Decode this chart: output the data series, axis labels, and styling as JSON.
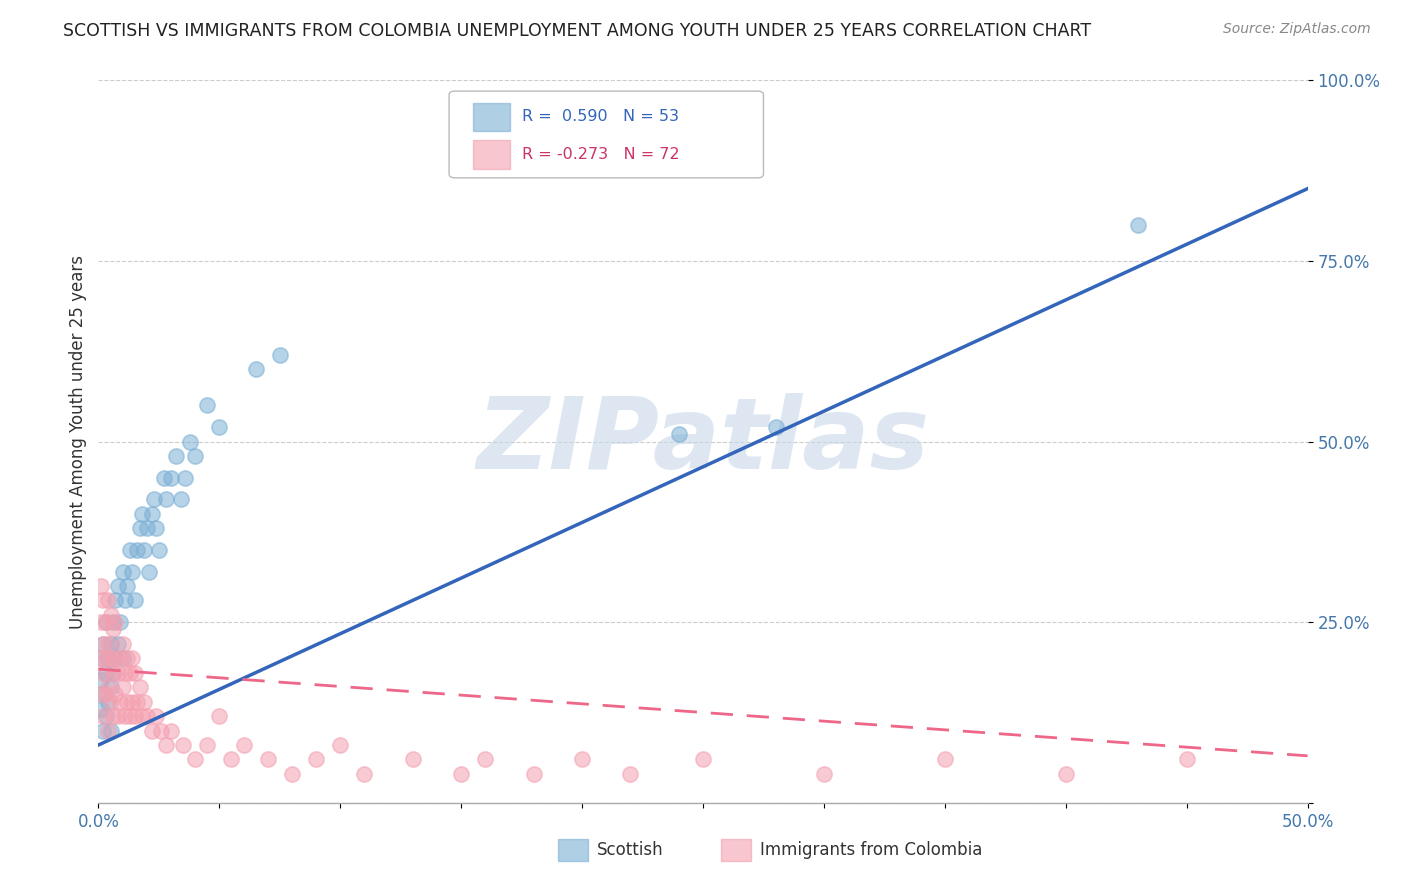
{
  "title": "SCOTTISH VS IMMIGRANTS FROM COLOMBIA UNEMPLOYMENT AMONG YOUTH UNDER 25 YEARS CORRELATION CHART",
  "source": "Source: ZipAtlas.com",
  "ylabel": "Unemployment Among Youth under 25 years",
  "xlim": [
    0.0,
    0.5
  ],
  "ylim": [
    0.0,
    1.0
  ],
  "ytick_positions": [
    0.0,
    0.25,
    0.5,
    0.75,
    1.0
  ],
  "yticklabels": [
    "",
    "25.0%",
    "50.0%",
    "75.0%",
    "100.0%"
  ],
  "scottish_R": 0.59,
  "scottish_N": 53,
  "colombia_R": -0.273,
  "colombia_N": 72,
  "scottish_color": "#7BAFD4",
  "colombia_color": "#F4A0B0",
  "scottish_line_color": "#3366BB",
  "colombia_line_color": "#EE6688",
  "watermark": "ZIPatlas",
  "legend_scottish": "Scottish",
  "legend_colombia": "Immigrants from Colombia",
  "scottish_x": [
    0.001,
    0.001,
    0.001,
    0.002,
    0.002,
    0.002,
    0.003,
    0.003,
    0.003,
    0.004,
    0.004,
    0.005,
    0.005,
    0.005,
    0.006,
    0.006,
    0.007,
    0.007,
    0.008,
    0.008,
    0.009,
    0.01,
    0.01,
    0.011,
    0.012,
    0.013,
    0.014,
    0.015,
    0.016,
    0.017,
    0.018,
    0.019,
    0.02,
    0.021,
    0.022,
    0.023,
    0.024,
    0.025,
    0.027,
    0.028,
    0.03,
    0.032,
    0.034,
    0.036,
    0.038,
    0.04,
    0.045,
    0.05,
    0.065,
    0.075,
    0.24,
    0.28,
    0.43
  ],
  "scottish_y": [
    0.13,
    0.17,
    0.2,
    0.1,
    0.15,
    0.22,
    0.12,
    0.18,
    0.25,
    0.14,
    0.2,
    0.1,
    0.16,
    0.22,
    0.18,
    0.25,
    0.2,
    0.28,
    0.22,
    0.3,
    0.25,
    0.2,
    0.32,
    0.28,
    0.3,
    0.35,
    0.32,
    0.28,
    0.35,
    0.38,
    0.4,
    0.35,
    0.38,
    0.32,
    0.4,
    0.42,
    0.38,
    0.35,
    0.45,
    0.42,
    0.45,
    0.48,
    0.42,
    0.45,
    0.5,
    0.48,
    0.55,
    0.52,
    0.6,
    0.62,
    0.51,
    0.52,
    0.8
  ],
  "colombia_x": [
    0.001,
    0.001,
    0.001,
    0.001,
    0.002,
    0.002,
    0.002,
    0.002,
    0.003,
    0.003,
    0.003,
    0.004,
    0.004,
    0.004,
    0.004,
    0.005,
    0.005,
    0.005,
    0.006,
    0.006,
    0.006,
    0.007,
    0.007,
    0.007,
    0.008,
    0.008,
    0.009,
    0.009,
    0.01,
    0.01,
    0.011,
    0.011,
    0.012,
    0.012,
    0.013,
    0.013,
    0.014,
    0.014,
    0.015,
    0.015,
    0.016,
    0.017,
    0.018,
    0.019,
    0.02,
    0.022,
    0.024,
    0.026,
    0.028,
    0.03,
    0.035,
    0.04,
    0.045,
    0.05,
    0.055,
    0.06,
    0.07,
    0.08,
    0.09,
    0.1,
    0.11,
    0.13,
    0.15,
    0.16,
    0.18,
    0.2,
    0.22,
    0.25,
    0.3,
    0.35,
    0.4,
    0.45
  ],
  "colombia_y": [
    0.15,
    0.2,
    0.25,
    0.3,
    0.12,
    0.18,
    0.22,
    0.28,
    0.15,
    0.2,
    0.25,
    0.1,
    0.16,
    0.22,
    0.28,
    0.14,
    0.2,
    0.26,
    0.12,
    0.18,
    0.24,
    0.15,
    0.2,
    0.25,
    0.12,
    0.18,
    0.14,
    0.2,
    0.16,
    0.22,
    0.12,
    0.18,
    0.14,
    0.2,
    0.12,
    0.18,
    0.14,
    0.2,
    0.12,
    0.18,
    0.14,
    0.16,
    0.12,
    0.14,
    0.12,
    0.1,
    0.12,
    0.1,
    0.08,
    0.1,
    0.08,
    0.06,
    0.08,
    0.12,
    0.06,
    0.08,
    0.06,
    0.04,
    0.06,
    0.08,
    0.04,
    0.06,
    0.04,
    0.06,
    0.04,
    0.06,
    0.04,
    0.06,
    0.04,
    0.06,
    0.04,
    0.06
  ]
}
